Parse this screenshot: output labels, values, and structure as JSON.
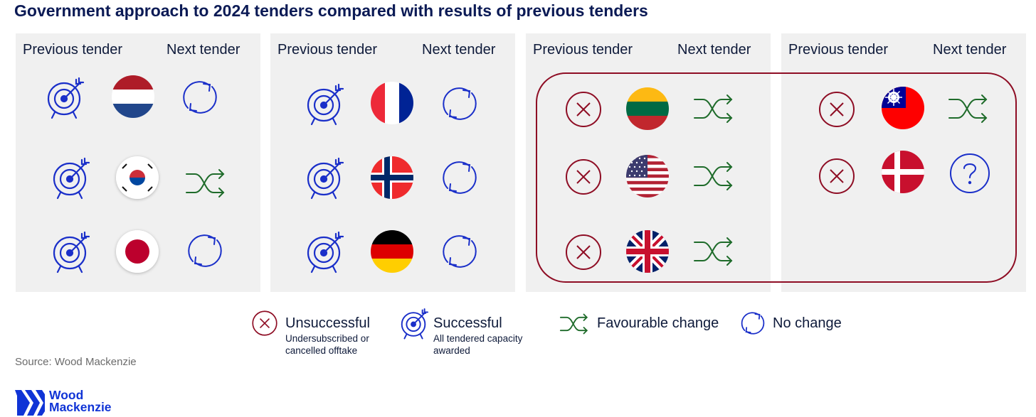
{
  "title": "Government approach to 2024 tenders compared with results of previous tenders",
  "header": {
    "previous": "Previous tender",
    "next": "Next tender"
  },
  "panels": [
    {
      "rows": [
        {
          "country": "Netherlands",
          "previous": "Successful",
          "next": "No change"
        },
        {
          "country": "South Korea",
          "previous": "Successful",
          "next": "Favourable change"
        },
        {
          "country": "Japan",
          "previous": "Successful",
          "next": "No change"
        }
      ]
    },
    {
      "rows": [
        {
          "country": "France",
          "previous": "Successful",
          "next": "No change"
        },
        {
          "country": "Norway",
          "previous": "Successful",
          "next": "No change"
        },
        {
          "country": "Germany",
          "previous": "Successful",
          "next": "No change"
        }
      ]
    },
    {
      "rows": [
        {
          "country": "Lithuania",
          "previous": "Unsuccessful",
          "next": "Favourable change"
        },
        {
          "country": "United States",
          "previous": "Unsuccessful",
          "next": "Favourable change"
        },
        {
          "country": "United Kingdom",
          "previous": "Unsuccessful",
          "next": "Favourable change"
        }
      ]
    },
    {
      "rows": [
        {
          "country": "Taiwan",
          "previous": "Unsuccessful",
          "next": "Favourable change"
        },
        {
          "country": "Denmark",
          "previous": "Unsuccessful",
          "next": "Unknown"
        }
      ]
    }
  ],
  "legend": {
    "unsuccessful": {
      "label": "Unsuccessful",
      "sub": "Undersubscribed or cancelled offtake",
      "icon": "x-circle-icon"
    },
    "successful": {
      "label": "Successful",
      "sub": "All tendered capacity awarded",
      "icon": "target-icon"
    },
    "favourable": {
      "label": "Favourable change",
      "icon": "shuffle-icon"
    },
    "nochange": {
      "label": "No change",
      "icon": "refresh-icon"
    }
  },
  "source": "Source: Wood Mackenzie",
  "logo": {
    "line1": "Wood",
    "line2": "Mackenzie"
  },
  "colors": {
    "navy": "#1a2fc9",
    "green": "#1e6b2a",
    "red": "#8e0d24",
    "panel": "#f0f0f0"
  }
}
